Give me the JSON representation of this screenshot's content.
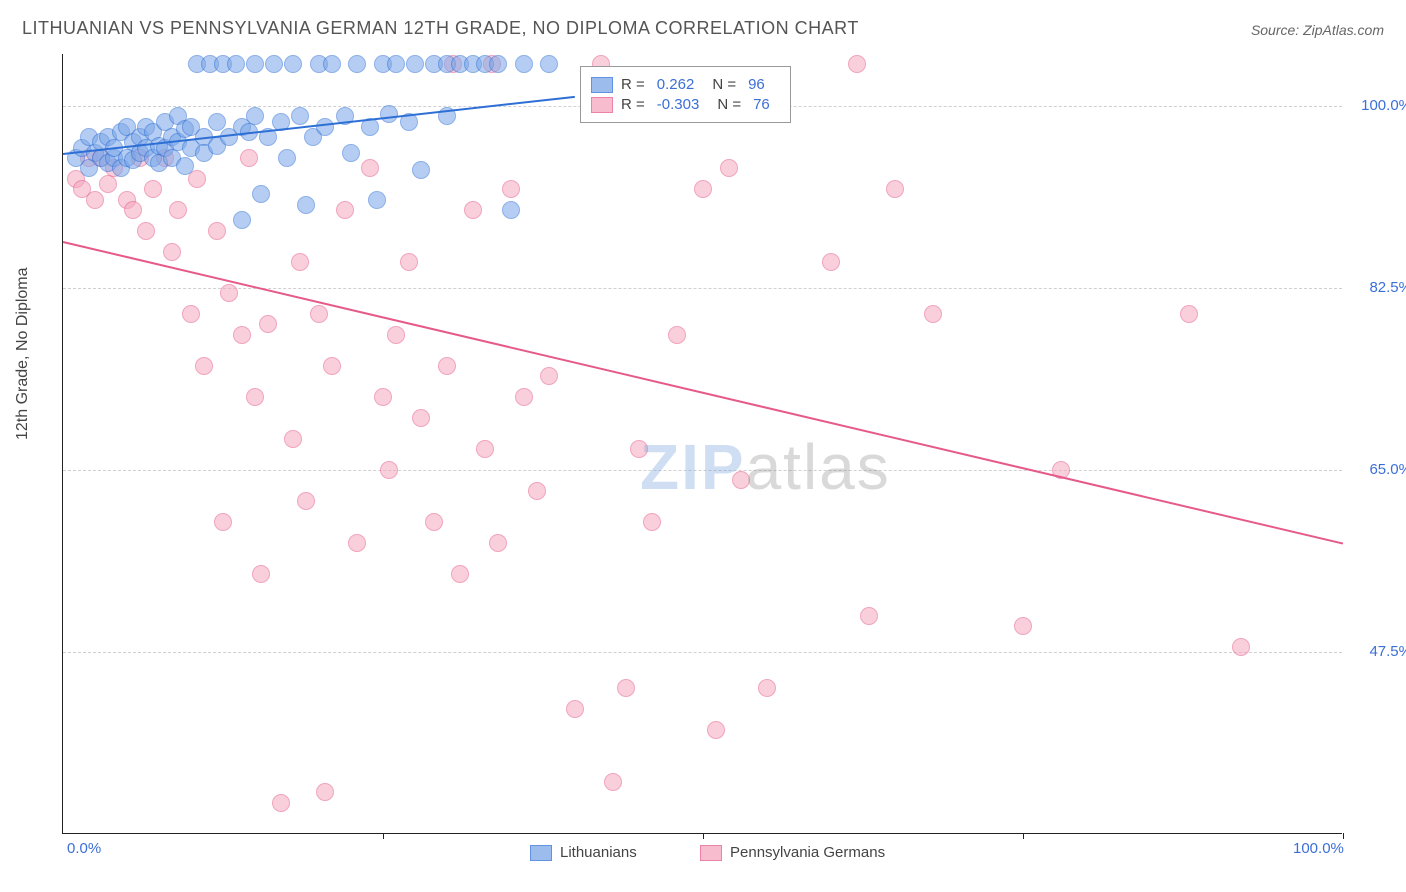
{
  "title": "LITHUANIAN VS PENNSYLVANIA GERMAN 12TH GRADE, NO DIPLOMA CORRELATION CHART",
  "source": "Source: ZipAtlas.com",
  "y_axis_label": "12th Grade, No Diploma",
  "chart": {
    "type": "scatter",
    "background_color": "#ffffff",
    "grid_color": "#d0d0d0",
    "axis_color": "#222222",
    "tick_label_color": "#3b6fd8",
    "xlim": [
      0,
      100
    ],
    "ylim": [
      30,
      105
    ],
    "y_ticks": [
      {
        "value": 100.0,
        "label": "100.0%"
      },
      {
        "value": 82.5,
        "label": "82.5%"
      },
      {
        "value": 65.0,
        "label": "65.0%"
      },
      {
        "value": 47.5,
        "label": "47.5%"
      }
    ],
    "x_ticks_major": [
      0,
      25,
      50,
      75,
      100
    ],
    "x_tick_labels": [
      {
        "value": 0,
        "label": "0.0%"
      },
      {
        "value": 100,
        "label": "100.0%"
      }
    ],
    "point_radius": 9,
    "point_stroke_width": 1.5,
    "point_fill_opacity": 0.28
  },
  "series": {
    "lithuanians": {
      "label": "Lithuanians",
      "stroke": "#2e6fd6",
      "fill": "#7aa6e8",
      "R": "0.262",
      "N": "96",
      "trend": {
        "x1": 0,
        "y1": 95.5,
        "x2": 40,
        "y2": 101
      },
      "points": [
        [
          1,
          95
        ],
        [
          1.5,
          96
        ],
        [
          2,
          97
        ],
        [
          2,
          94
        ],
        [
          2.5,
          95.5
        ],
        [
          3,
          95
        ],
        [
          3,
          96.5
        ],
        [
          3.5,
          94.5
        ],
        [
          3.5,
          97
        ],
        [
          4,
          95
        ],
        [
          4,
          96
        ],
        [
          4.5,
          97.5
        ],
        [
          4.5,
          94
        ],
        [
          5,
          98
        ],
        [
          5,
          95
        ],
        [
          5.5,
          96.5
        ],
        [
          5.5,
          94.8
        ],
        [
          6,
          97
        ],
        [
          6,
          95.5
        ],
        [
          6.5,
          96
        ],
        [
          6.5,
          98
        ],
        [
          7,
          95
        ],
        [
          7,
          97.5
        ],
        [
          7.5,
          96.2
        ],
        [
          7.5,
          94.5
        ],
        [
          8,
          98.5
        ],
        [
          8,
          96
        ],
        [
          8.5,
          97
        ],
        [
          8.5,
          95
        ],
        [
          9,
          99
        ],
        [
          9,
          96.5
        ],
        [
          9.5,
          97.8
        ],
        [
          9.5,
          94.2
        ],
        [
          10,
          98
        ],
        [
          10,
          96
        ],
        [
          10.5,
          104
        ],
        [
          11,
          97
        ],
        [
          11,
          95.5
        ],
        [
          11.5,
          104
        ],
        [
          12,
          98.5
        ],
        [
          12,
          96.2
        ],
        [
          12.5,
          104
        ],
        [
          13,
          97
        ],
        [
          13.5,
          104
        ],
        [
          14,
          98
        ],
        [
          14,
          89
        ],
        [
          14.5,
          97.5
        ],
        [
          15,
          104
        ],
        [
          15,
          99
        ],
        [
          15.5,
          91.5
        ],
        [
          16,
          97
        ],
        [
          16.5,
          104
        ],
        [
          17,
          98.5
        ],
        [
          17.5,
          95
        ],
        [
          18,
          104
        ],
        [
          18.5,
          99
        ],
        [
          19,
          90.5
        ],
        [
          19.5,
          97
        ],
        [
          20,
          104
        ],
        [
          20.5,
          98
        ],
        [
          21,
          104
        ],
        [
          22,
          99
        ],
        [
          22.5,
          95.5
        ],
        [
          23,
          104
        ],
        [
          24,
          98
        ],
        [
          24.5,
          91
        ],
        [
          25,
          104
        ],
        [
          25.5,
          99.2
        ],
        [
          26,
          104
        ],
        [
          27,
          98.5
        ],
        [
          27.5,
          104
        ],
        [
          28,
          93.8
        ],
        [
          29,
          104
        ],
        [
          30,
          99
        ],
        [
          30,
          104
        ],
        [
          31,
          104
        ],
        [
          32,
          104
        ],
        [
          33,
          104
        ],
        [
          34,
          104
        ],
        [
          35,
          90
        ],
        [
          36,
          104
        ],
        [
          38,
          104
        ]
      ]
    },
    "penn_german": {
      "label": "Pennsylvania Germans",
      "stroke": "#e65a8a",
      "fill": "#f5a8c0",
      "R": "-0.303",
      "N": "76",
      "trend": {
        "x1": 0,
        "y1": 87,
        "x2": 100,
        "y2": 58
      },
      "points": [
        [
          1,
          93
        ],
        [
          1.5,
          92
        ],
        [
          2,
          95
        ],
        [
          2.5,
          91
        ],
        [
          3,
          95
        ],
        [
          3.5,
          92.5
        ],
        [
          4,
          94
        ],
        [
          5,
          91
        ],
        [
          5.5,
          90
        ],
        [
          6,
          95
        ],
        [
          6.5,
          88
        ],
        [
          7,
          92
        ],
        [
          8,
          95
        ],
        [
          8.5,
          86
        ],
        [
          9,
          90
        ],
        [
          10,
          80
        ],
        [
          10.5,
          93
        ],
        [
          11,
          75
        ],
        [
          12,
          88
        ],
        [
          12.5,
          60
        ],
        [
          13,
          82
        ],
        [
          14,
          78
        ],
        [
          14.5,
          95
        ],
        [
          15,
          72
        ],
        [
          15.5,
          55
        ],
        [
          16,
          79
        ],
        [
          17,
          33
        ],
        [
          18,
          68
        ],
        [
          18.5,
          85
        ],
        [
          19,
          62
        ],
        [
          20,
          80
        ],
        [
          20.5,
          34
        ],
        [
          21,
          75
        ],
        [
          22,
          90
        ],
        [
          23,
          58
        ],
        [
          24,
          94
        ],
        [
          25,
          72
        ],
        [
          25.5,
          65
        ],
        [
          26,
          78
        ],
        [
          27,
          85
        ],
        [
          28,
          70
        ],
        [
          29,
          60
        ],
        [
          30,
          75
        ],
        [
          30.5,
          104
        ],
        [
          31,
          55
        ],
        [
          32,
          90
        ],
        [
          33,
          67
        ],
        [
          33.5,
          104
        ],
        [
          34,
          58
        ],
        [
          35,
          92
        ],
        [
          36,
          72
        ],
        [
          37,
          63
        ],
        [
          38,
          74
        ],
        [
          40,
          42
        ],
        [
          42,
          104
        ],
        [
          43,
          35
        ],
        [
          44,
          44
        ],
        [
          45,
          67
        ],
        [
          46,
          60
        ],
        [
          48,
          78
        ],
        [
          50,
          92
        ],
        [
          51,
          40
        ],
        [
          52,
          94
        ],
        [
          53,
          64
        ],
        [
          55,
          44
        ],
        [
          60,
          85
        ],
        [
          62,
          104
        ],
        [
          63,
          51
        ],
        [
          65,
          92
        ],
        [
          68,
          80
        ],
        [
          75,
          50
        ],
        [
          78,
          65
        ],
        [
          88,
          80
        ],
        [
          92,
          48
        ]
      ]
    }
  },
  "stats_legend": {
    "R_label": "R =",
    "N_label": "N ="
  },
  "watermark": {
    "zip": "ZIP",
    "atlas": "atlas"
  }
}
